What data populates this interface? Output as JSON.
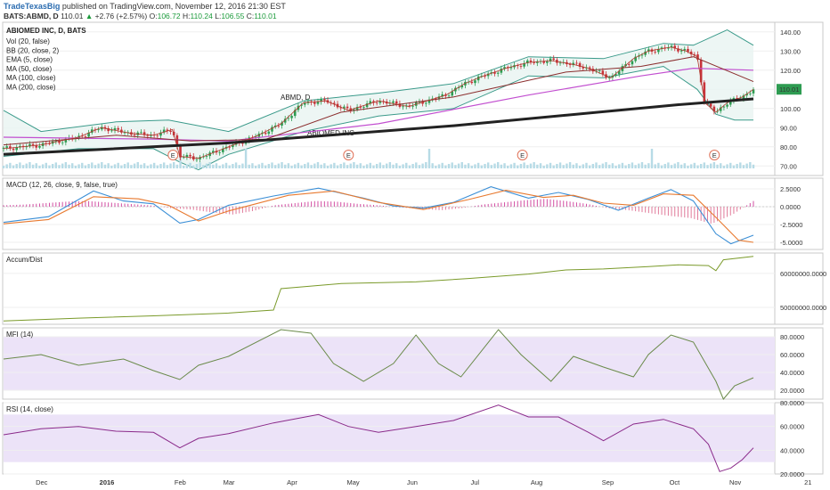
{
  "header": {
    "user": "TradeTexasBig",
    "published": "published on TradingView.com, November 12, 2016 21:30 EST",
    "symbol": "BATS:ABMD, D",
    "last": "110.01",
    "change": "+2.76 (+2.57%)",
    "open_label": "O:",
    "open": "106.72",
    "high_label": "H:",
    "high": "110.24",
    "low_label": "L:",
    "low": "106.55",
    "close_label": "C:",
    "close": "110.01"
  },
  "watermark": {
    "ticker": "ABMD, D",
    "name": "ABIOMED INC"
  },
  "colors": {
    "up": "#2e9c52",
    "down": "#c8333a",
    "bb": "#3a9a8a",
    "ema": "#b03a2e",
    "ma50": "#8b2e2e",
    "ma100": "#c24fd0",
    "ma200": "#222222",
    "macd": "#3b8fd6",
    "signal": "#e87a30",
    "hist_pos": "#d24fa3",
    "accdist": "#7a9a2a",
    "mfi": "#6a8a4a",
    "rsi": "#8a2a8a",
    "band": "#ece3f8"
  },
  "chart_data": [
    {
      "type": "candlestick",
      "title": "ABIOMED INC, D, BATS",
      "legend": [
        "Vol (20, false)",
        "BB (20, close, 2)",
        "EMA (5, close)",
        "MA (50, close)",
        "MA (100, close)",
        "MA (200, close)"
      ],
      "ylim": [
        65,
        145
      ],
      "y_ticks": [
        "140.00",
        "130.00",
        "120.00",
        "110.00",
        "100.00",
        "90.00",
        "80.00",
        "70.00"
      ],
      "last_price_label": "110.01",
      "x_ticks": [
        "Dec",
        "2016",
        "Feb",
        "Mar",
        "Apr",
        "May",
        "Jun",
        "Jul",
        "Aug",
        "Sep",
        "Oct",
        "Nov",
        "21"
      ],
      "earnings_markers": [
        "E",
        "E",
        "E",
        "E"
      ],
      "close_path": [
        [
          0,
          79
        ],
        [
          0.05,
          81
        ],
        [
          0.1,
          85
        ],
        [
          0.13,
          90
        ],
        [
          0.17,
          87
        ],
        [
          0.2,
          86
        ],
        [
          0.225,
          89
        ],
        [
          0.235,
          75
        ],
        [
          0.26,
          74
        ],
        [
          0.3,
          80
        ],
        [
          0.34,
          86
        ],
        [
          0.37,
          92
        ],
        [
          0.4,
          103
        ],
        [
          0.43,
          104
        ],
        [
          0.46,
          99
        ],
        [
          0.5,
          104
        ],
        [
          0.54,
          101
        ],
        [
          0.59,
          107
        ],
        [
          0.615,
          113
        ],
        [
          0.64,
          117
        ],
        [
          0.67,
          121
        ],
        [
          0.7,
          124
        ],
        [
          0.73,
          125
        ],
        [
          0.76,
          123
        ],
        [
          0.78,
          121
        ],
        [
          0.81,
          116
        ],
        [
          0.84,
          126
        ],
        [
          0.86,
          130
        ],
        [
          0.89,
          132
        ],
        [
          0.91,
          130
        ],
        [
          0.925,
          127
        ],
        [
          0.935,
          103
        ],
        [
          0.95,
          98
        ],
        [
          0.965,
          103
        ],
        [
          0.985,
          106
        ],
        [
          1,
          110
        ]
      ],
      "ma200_path": [
        [
          0,
          76
        ],
        [
          0.3,
          82
        ],
        [
          0.6,
          91
        ],
        [
          0.9,
          102
        ],
        [
          1,
          105
        ]
      ],
      "ma100_path": [
        [
          0,
          85
        ],
        [
          0.2,
          84
        ],
        [
          0.3,
          83
        ],
        [
          0.5,
          92
        ],
        [
          0.7,
          107
        ],
        [
          0.85,
          117
        ],
        [
          0.92,
          121
        ],
        [
          1,
          120
        ]
      ],
      "ma50_path": [
        [
          0,
          81
        ],
        [
          0.15,
          86
        ],
        [
          0.25,
          83
        ],
        [
          0.35,
          84
        ],
        [
          0.45,
          98
        ],
        [
          0.6,
          106
        ],
        [
          0.75,
          119
        ],
        [
          0.85,
          122
        ],
        [
          0.92,
          127
        ],
        [
          1,
          114
        ]
      ],
      "bb_upper_path": [
        [
          0,
          99
        ],
        [
          0.05,
          88
        ],
        [
          0.15,
          93
        ],
        [
          0.22,
          94
        ],
        [
          0.3,
          88
        ],
        [
          0.4,
          104
        ],
        [
          0.5,
          108
        ],
        [
          0.6,
          113
        ],
        [
          0.7,
          127
        ],
        [
          0.8,
          126
        ],
        [
          0.88,
          134
        ],
        [
          0.92,
          133
        ],
        [
          0.965,
          141
        ],
        [
          1,
          133
        ]
      ],
      "bb_lower_path": [
        [
          0,
          75
        ],
        [
          0.1,
          79
        ],
        [
          0.2,
          79
        ],
        [
          0.235,
          72
        ],
        [
          0.26,
          68
        ],
        [
          0.3,
          76
        ],
        [
          0.4,
          88
        ],
        [
          0.5,
          96
        ],
        [
          0.6,
          100
        ],
        [
          0.7,
          117
        ],
        [
          0.8,
          116
        ],
        [
          0.88,
          122
        ],
        [
          0.925,
          110
        ],
        [
          0.95,
          97
        ],
        [
          0.975,
          94
        ],
        [
          1,
          94
        ]
      ]
    },
    {
      "type": "line",
      "title": "MACD (12, 26, close, 9, false, true)",
      "ylim": [
        -6,
        4
      ],
      "y_ticks": [
        "2.5000",
        "0.0000",
        "-2.5000",
        "-5.0000"
      ],
      "macd_path": [
        [
          0,
          -2.2
        ],
        [
          0.06,
          -1.4
        ],
        [
          0.12,
          2.2
        ],
        [
          0.16,
          0.8
        ],
        [
          0.2,
          0.4
        ],
        [
          0.235,
          -2.3
        ],
        [
          0.26,
          -1.8
        ],
        [
          0.3,
          0.2
        ],
        [
          0.36,
          1.5
        ],
        [
          0.42,
          2.6
        ],
        [
          0.48,
          1.2
        ],
        [
          0.52,
          0.1
        ],
        [
          0.56,
          -0.2
        ],
        [
          0.6,
          0.6
        ],
        [
          0.65,
          2.8
        ],
        [
          0.7,
          1.2
        ],
        [
          0.74,
          2.0
        ],
        [
          0.78,
          1.0
        ],
        [
          0.82,
          -0.5
        ],
        [
          0.86,
          1.2
        ],
        [
          0.89,
          2.4
        ],
        [
          0.92,
          0.8
        ],
        [
          0.95,
          -3.8
        ],
        [
          0.97,
          -5.2
        ],
        [
          1,
          -4.0
        ]
      ],
      "signal_path": [
        [
          0,
          -2.4
        ],
        [
          0.06,
          -1.8
        ],
        [
          0.12,
          1.4
        ],
        [
          0.18,
          1.1
        ],
        [
          0.22,
          0.2
        ],
        [
          0.26,
          -2.0
        ],
        [
          0.3,
          -0.6
        ],
        [
          0.38,
          1.6
        ],
        [
          0.44,
          2.2
        ],
        [
          0.5,
          0.6
        ],
        [
          0.56,
          -0.4
        ],
        [
          0.62,
          1.0
        ],
        [
          0.67,
          2.3
        ],
        [
          0.72,
          1.3
        ],
        [
          0.76,
          1.6
        ],
        [
          0.8,
          0.5
        ],
        [
          0.84,
          0.2
        ],
        [
          0.88,
          1.8
        ],
        [
          0.92,
          1.6
        ],
        [
          0.95,
          -1.5
        ],
        [
          0.98,
          -4.7
        ],
        [
          1,
          -5.0
        ]
      ],
      "histogram": [
        0.2,
        0.3,
        0.5,
        0.7,
        0.8,
        0.6,
        0.4,
        0.2,
        -0.2,
        -0.4,
        -0.8,
        -1.1,
        -0.6,
        0.2,
        0.5,
        0.8,
        0.7,
        0.4,
        0.2,
        -0.1,
        -0.3,
        -0.5,
        -0.2,
        0.3,
        0.6,
        0.9,
        1.1,
        0.8,
        0.4,
        -0.2,
        -0.5,
        -0.9,
        -1.3,
        -1.6,
        -2.4,
        -1.1,
        0.8
      ]
    },
    {
      "type": "line",
      "title": "Accum/Dist",
      "y_ticks": [
        "60000000.0000",
        "50000000.0000"
      ],
      "ylim": [
        45000000,
        66000000
      ],
      "path": [
        [
          0,
          46
        ],
        [
          0.1,
          46.8
        ],
        [
          0.2,
          47.5
        ],
        [
          0.3,
          48.3
        ],
        [
          0.36,
          49.2
        ],
        [
          0.37,
          55.5
        ],
        [
          0.45,
          57
        ],
        [
          0.55,
          57.5
        ],
        [
          0.62,
          58.5
        ],
        [
          0.7,
          59.8
        ],
        [
          0.75,
          61
        ],
        [
          0.8,
          61.3
        ],
        [
          0.86,
          62
        ],
        [
          0.9,
          62.5
        ],
        [
          0.94,
          62.3
        ],
        [
          0.95,
          60.8
        ],
        [
          0.96,
          64
        ],
        [
          1,
          65
        ]
      ]
    },
    {
      "type": "line",
      "title": "MFI (14)",
      "ylim": [
        10,
        90
      ],
      "band": [
        20,
        80
      ],
      "y_ticks": [
        "80.0000",
        "60.0000",
        "40.0000",
        "20.0000"
      ],
      "path": [
        [
          0,
          55
        ],
        [
          0.05,
          60
        ],
        [
          0.1,
          48
        ],
        [
          0.16,
          55
        ],
        [
          0.2,
          42
        ],
        [
          0.235,
          32
        ],
        [
          0.26,
          48
        ],
        [
          0.3,
          58
        ],
        [
          0.37,
          88
        ],
        [
          0.41,
          84
        ],
        [
          0.44,
          50
        ],
        [
          0.48,
          30
        ],
        [
          0.52,
          50
        ],
        [
          0.55,
          82
        ],
        [
          0.58,
          50
        ],
        [
          0.61,
          35
        ],
        [
          0.66,
          88
        ],
        [
          0.69,
          60
        ],
        [
          0.73,
          30
        ],
        [
          0.76,
          58
        ],
        [
          0.8,
          46
        ],
        [
          0.84,
          35
        ],
        [
          0.86,
          60
        ],
        [
          0.89,
          82
        ],
        [
          0.92,
          74
        ],
        [
          0.95,
          30
        ],
        [
          0.96,
          10
        ],
        [
          0.975,
          25
        ],
        [
          1,
          34
        ]
      ]
    },
    {
      "type": "line",
      "title": "RSI (14, close)",
      "ylim": [
        20,
        80
      ],
      "band": [
        30,
        70
      ],
      "y_ticks": [
        "80.0000",
        "60.0000",
        "40.0000",
        "20.0000"
      ],
      "path": [
        [
          0,
          53
        ],
        [
          0.05,
          58
        ],
        [
          0.1,
          60
        ],
        [
          0.15,
          56
        ],
        [
          0.2,
          55
        ],
        [
          0.235,
          42
        ],
        [
          0.26,
          50
        ],
        [
          0.3,
          54
        ],
        [
          0.36,
          63
        ],
        [
          0.42,
          70
        ],
        [
          0.46,
          60
        ],
        [
          0.5,
          55
        ],
        [
          0.55,
          60
        ],
        [
          0.6,
          65
        ],
        [
          0.66,
          78
        ],
        [
          0.7,
          68
        ],
        [
          0.74,
          68
        ],
        [
          0.78,
          55
        ],
        [
          0.8,
          48
        ],
        [
          0.84,
          62
        ],
        [
          0.88,
          66
        ],
        [
          0.92,
          58
        ],
        [
          0.94,
          45
        ],
        [
          0.955,
          22
        ],
        [
          0.97,
          25
        ],
        [
          0.985,
          32
        ],
        [
          1,
          42
        ]
      ]
    }
  ]
}
